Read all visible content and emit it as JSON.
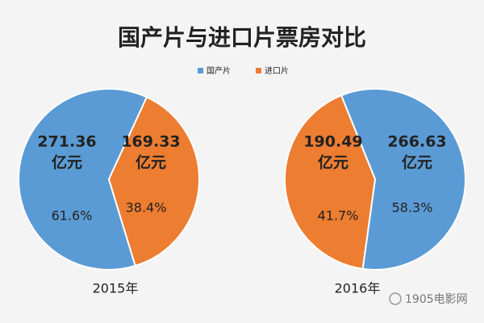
{
  "title": "国产片与进口片票房对比",
  "watermark": "1905电影网",
  "chart_data": [
    {
      "type": "pie",
      "xlabel": "2015年",
      "categories": [
        "国产片",
        "进口片"
      ],
      "colors": [
        "#5b9bd5",
        "#ed7d31"
      ],
      "values": [
        61.6,
        38.4
      ],
      "value_labels": [
        "61.6%",
        "38.4%"
      ],
      "amounts": [
        271.36,
        169.33
      ],
      "amount_unit": "亿元"
    },
    {
      "type": "pie",
      "xlabel": "2016年",
      "categories": [
        "国产片",
        "进口片"
      ],
      "colors": [
        "#5b9bd5",
        "#ed7d31"
      ],
      "values": [
        58.3,
        41.7
      ],
      "value_labels": [
        "58.3%",
        "41.7%"
      ],
      "amounts": [
        266.63,
        190.49
      ],
      "amount_unit": "亿元"
    }
  ]
}
